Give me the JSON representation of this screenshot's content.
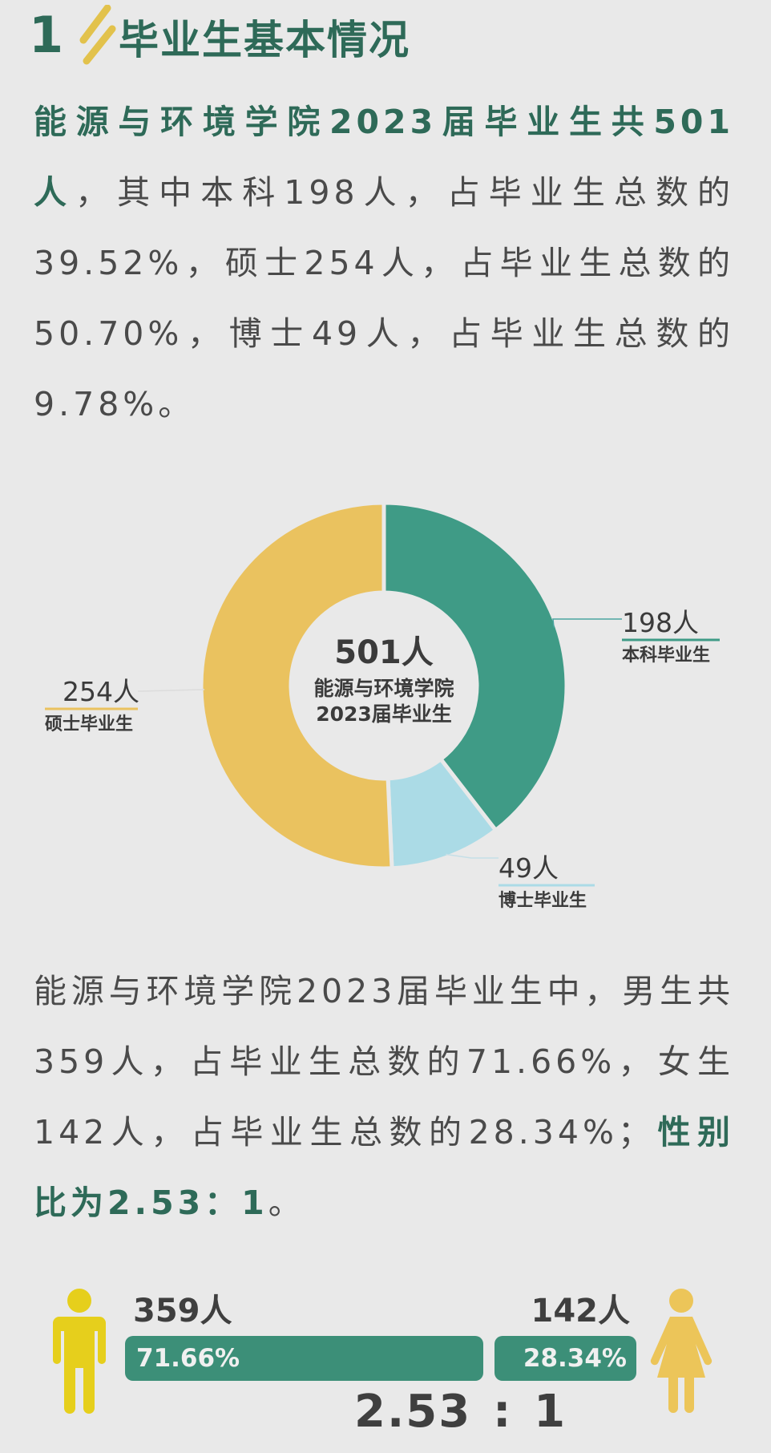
{
  "header": {
    "number": "1",
    "title": "毕业生基本情况"
  },
  "para1": {
    "lead": "能源与环境学院2023届毕业生共501人",
    "rest": "，其中本科198人，占毕业生总数的39.52%，硕士254人，占毕业生总数的50.70%，博士49人，占毕业生总数的9.78%。"
  },
  "chart_data": {
    "type": "pie",
    "center_value": "501人",
    "center_line1": "能源与环境学院",
    "center_line2": "2023届毕业生",
    "slices": [
      {
        "label": "本科毕业生",
        "value": 198,
        "display": "198人",
        "color": "#3f9b86",
        "line_color": "#3f9b86"
      },
      {
        "label": "博士毕业生",
        "value": 49,
        "display": "49人",
        "color": "#abdbe6",
        "line_color": "#abdbe6"
      },
      {
        "label": "硕士毕业生",
        "value": 254,
        "display": "254人",
        "color": "#eac25f",
        "line_color": "#eac25f"
      }
    ]
  },
  "para2": {
    "text": "能源与环境学院2023届毕业生中，男生共359人，占毕业生总数的71.66%，女生142人，占毕业生总数的28.34%；",
    "emph": "性别比为2.53：1",
    "end": "。"
  },
  "gender": {
    "male_count": "359人",
    "male_percent": "71.66%",
    "male_share": 0.7166,
    "female_count": "142人",
    "female_percent": "28.34%",
    "female_share": 0.2834,
    "ratio_left": "2.53",
    "ratio_sep": ":",
    "ratio_right": "1",
    "male_color": "#e6cf1c",
    "female_color": "#ecc559",
    "bar_color": "#3c8f78"
  }
}
